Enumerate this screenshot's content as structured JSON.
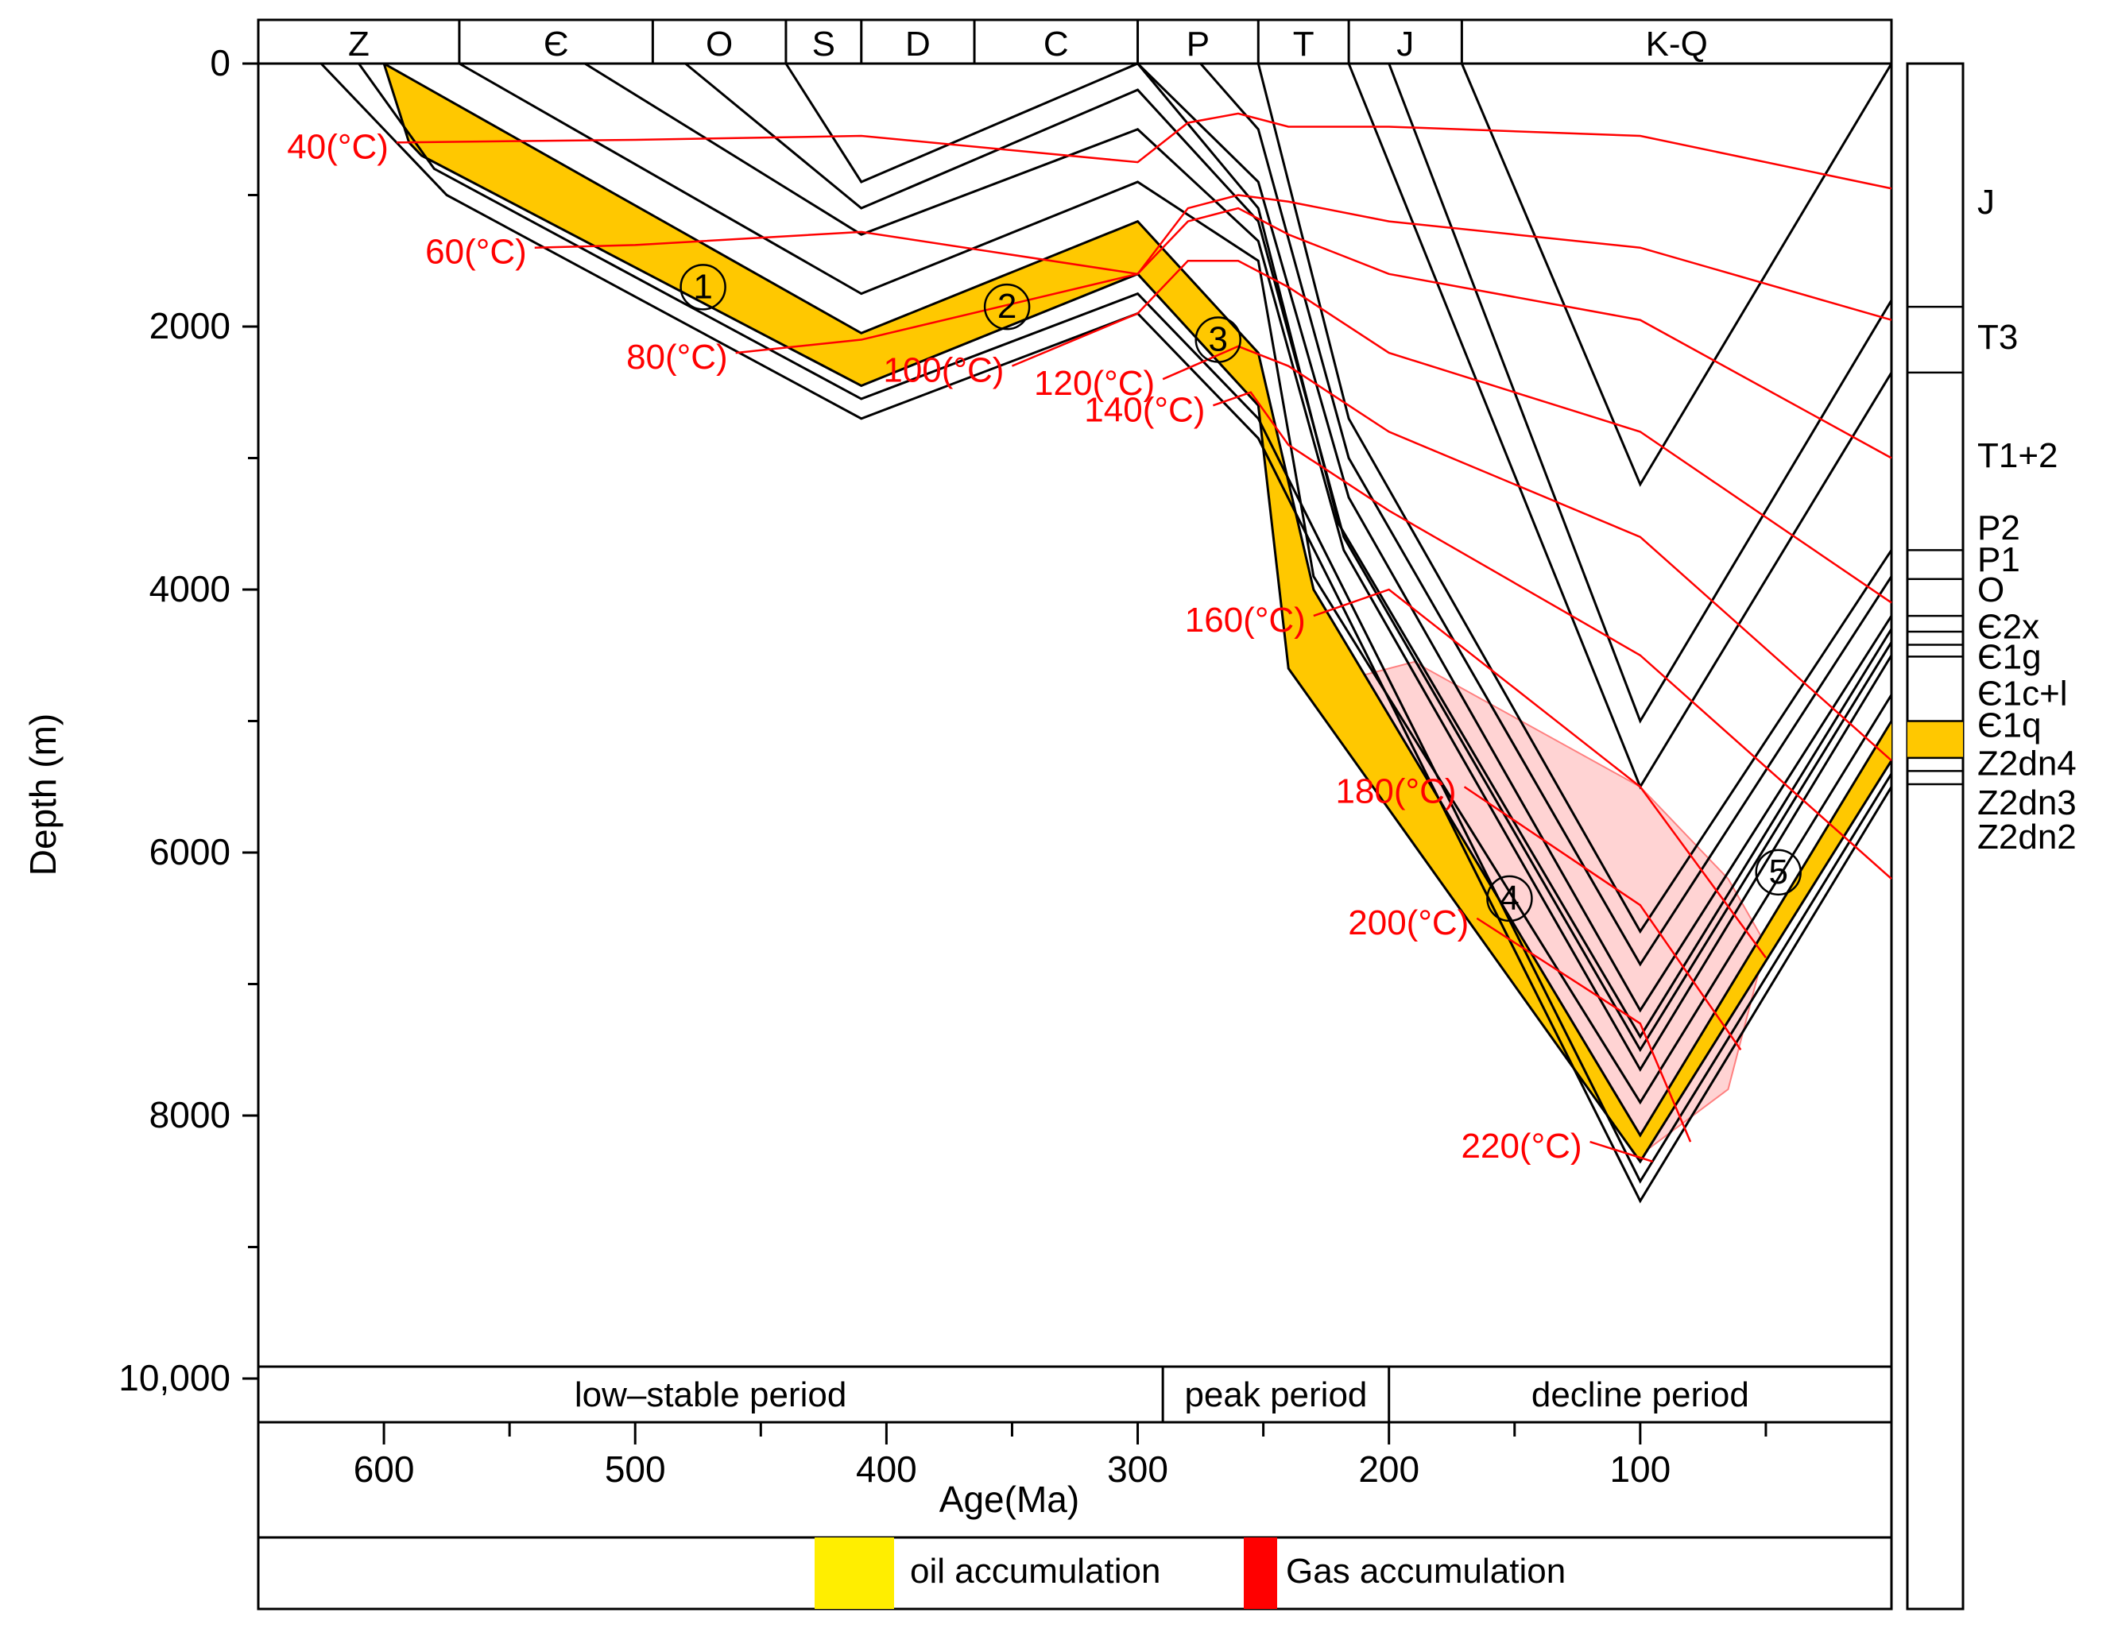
{
  "chart_data": {
    "type": "line",
    "title": "",
    "xlabel": "Age(Ma)",
    "ylabel": "Depth (m)",
    "xlim": [
      650,
      0
    ],
    "ylim": [
      0,
      11000
    ],
    "x_ticks": [
      600,
      500,
      400,
      300,
      200,
      100
    ],
    "x_tick_labels": [
      "600",
      "500",
      "400",
      "300",
      "200",
      "100"
    ],
    "y_ticks": [
      0,
      2000,
      4000,
      6000,
      8000,
      10000
    ],
    "y_tick_labels": [
      "0",
      "2000",
      "4000",
      "6000",
      "8000",
      "10,000"
    ],
    "periods": [
      {
        "label": "Z",
        "start": 650,
        "end": 570
      },
      {
        "label": "Є",
        "start": 570,
        "end": 493
      },
      {
        "label": "O",
        "start": 493,
        "end": 440
      },
      {
        "label": "S",
        "start": 440,
        "end": 410
      },
      {
        "label": "D",
        "start": 410,
        "end": 365
      },
      {
        "label": "C",
        "start": 365,
        "end": 300
      },
      {
        "label": "P",
        "start": 300,
        "end": 252
      },
      {
        "label": "T",
        "start": 252,
        "end": 216
      },
      {
        "label": "J",
        "start": 216,
        "end": 171
      },
      {
        "label": "K-Q",
        "start": 171,
        "end": 0
      }
    ],
    "tectonic_periods": [
      {
        "label": "low–stable period",
        "start": 650,
        "end": 290
      },
      {
        "label": "peak period",
        "start": 290,
        "end": 200
      },
      {
        "label": "decline period",
        "start": 200,
        "end": 0
      }
    ],
    "strata_column": [
      {
        "label": "J",
        "depth": 1050
      },
      {
        "label": "T3",
        "depth": 2080
      },
      {
        "label": "T1+2",
        "depth": 2980
      },
      {
        "label": "P2",
        "depth": 3530
      },
      {
        "label": "P1",
        "depth": 3770
      },
      {
        "label": "O",
        "depth": 4000
      },
      {
        "label": "Є2x",
        "depth": 4280
      },
      {
        "label": "Є1g",
        "depth": 4510
      },
      {
        "label": "Є1c+l",
        "depth": 4790
      },
      {
        "label": "Є1q",
        "depth": 5030
      },
      {
        "label": "Z2dn4",
        "depth": 5320
      },
      {
        "label": "Z2dn3",
        "depth": 5620
      },
      {
        "label": "Z2dn2",
        "depth": 5880
      }
    ],
    "strata_boundaries": [
      1850,
      2350,
      3700,
      3920,
      4200,
      4320,
      4420,
      4510,
      5000,
      5280,
      5380,
      5480
    ],
    "oil_layer_range": [
      5000,
      5280
    ],
    "burial_series": [
      {
        "name": "top-J",
        "x": [
          171,
          100,
          0
        ],
        "y": [
          0,
          3200,
          0
        ]
      },
      {
        "name": "top-T3",
        "x": [
          200,
          100,
          0
        ],
        "y": [
          0,
          5000,
          1800
        ]
      },
      {
        "name": "top-T12",
        "x": [
          216,
          100,
          0
        ],
        "y": [
          0,
          5500,
          2350
        ]
      },
      {
        "name": "top-P2",
        "x": [
          252,
          216,
          100,
          0
        ],
        "y": [
          0,
          2700,
          6600,
          3700
        ]
      },
      {
        "name": "top-P1",
        "x": [
          275,
          252,
          216,
          100,
          0
        ],
        "y": [
          0,
          500,
          3000,
          6850,
          3900
        ]
      },
      {
        "name": "top-O",
        "x": [
          300,
          252,
          216,
          100,
          0
        ],
        "y": [
          0,
          900,
          3300,
          7200,
          4200
        ]
      },
      {
        "name": "top-Є2x",
        "x": [
          440,
          410,
          300,
          252,
          220,
          100,
          0
        ],
        "y": [
          0,
          900,
          0,
          1100,
          3500,
          7400,
          4300
        ]
      },
      {
        "name": "top-Є1g",
        "x": [
          480,
          410,
          300,
          252,
          218,
          100,
          0
        ],
        "y": [
          0,
          1100,
          200,
          1200,
          3600,
          7500,
          4400
        ]
      },
      {
        "name": "top-Є1c+l",
        "x": [
          520,
          410,
          300,
          252,
          218,
          100,
          0
        ],
        "y": [
          0,
          1300,
          500,
          1350,
          3700,
          7650,
          4500
        ]
      },
      {
        "name": "top-Є1q",
        "x": [
          570,
          410,
          300,
          252,
          230,
          100,
          0
        ],
        "y": [
          0,
          1750,
          900,
          1500,
          3900,
          7900,
          4800
        ]
      },
      {
        "name": "top-Z2dn4",
        "x": [
          600,
          410,
          300,
          252,
          230,
          100,
          0
        ],
        "y": [
          0,
          2050,
          1200,
          2200,
          4000,
          8150,
          5000
        ]
      },
      {
        "name": "base-Z2dn4",
        "x": [
          600,
          590,
          585,
          410,
          300,
          252,
          240,
          100,
          0
        ],
        "y": [
          0,
          600,
          700,
          2450,
          1600,
          2600,
          4600,
          8350,
          5300
        ]
      },
      {
        "name": "top-Z2dn3",
        "x": [
          610,
          580,
          410,
          300,
          252,
          100,
          0
        ],
        "y": [
          0,
          800,
          2550,
          1750,
          2700,
          8500,
          5400
        ]
      },
      {
        "name": "top-Z2dn2",
        "x": [
          625,
          575,
          410,
          300,
          252,
          100,
          0
        ],
        "y": [
          0,
          1000,
          2700,
          1900,
          2850,
          8650,
          5500
        ]
      }
    ],
    "isotherms": [
      {
        "label": "40(°C)",
        "x": [
          595,
          500,
          410,
          300,
          280,
          260,
          240,
          200,
          100,
          0
        ],
        "y": [
          600,
          580,
          550,
          750,
          450,
          380,
          480,
          480,
          550,
          950
        ]
      },
      {
        "label": "60(°C)",
        "x": [
          540,
          500,
          410,
          300,
          280,
          260,
          240,
          200,
          100,
          0
        ],
        "y": [
          1400,
          1380,
          1280,
          1600,
          1100,
          1000,
          1050,
          1200,
          1400,
          1950
        ]
      },
      {
        "name": "80",
        "label": "80(°C)",
        "x": [
          460,
          410,
          300,
          280,
          260,
          240,
          200,
          100,
          0
        ],
        "y": [
          2200,
          2100,
          1600,
          1200,
          1100,
          1300,
          1600,
          1950,
          3000
        ]
      },
      {
        "label": "100(°C)",
        "x": [
          350,
          300,
          280,
          260,
          240,
          200,
          100,
          0
        ],
        "y": [
          2300,
          1900,
          1500,
          1500,
          1700,
          2200,
          2800,
          4100
        ]
      },
      {
        "label": "120(°C)",
        "x": [
          290,
          260,
          240,
          200,
          100,
          0
        ],
        "y": [
          2400,
          2150,
          2300,
          2800,
          3600,
          5300
        ]
      },
      {
        "label": "140(°C)",
        "x": [
          270,
          255,
          240,
          200,
          100,
          0
        ],
        "y": [
          2600,
          2500,
          2900,
          3400,
          4500,
          6200
        ]
      },
      {
        "label": "160(°C)",
        "x": [
          230,
          200,
          100,
          50
        ],
        "y": [
          4200,
          4000,
          5500,
          6800
        ]
      },
      {
        "label": "180(°C)",
        "x": [
          170,
          100,
          60
        ],
        "y": [
          5500,
          6400,
          7500
        ]
      },
      {
        "label": "200(°C)",
        "x": [
          165,
          100,
          80
        ],
        "y": [
          6500,
          7300,
          8200
        ]
      },
      {
        "label": "220(°C)",
        "x": [
          120,
          95
        ],
        "y": [
          8200,
          8350
        ]
      }
    ],
    "accumulation_markers": [
      {
        "label": "1",
        "x": 473,
        "y": 1700
      },
      {
        "label": "2",
        "x": 352,
        "y": 1850
      },
      {
        "label": "3",
        "x": 268,
        "y": 2100
      },
      {
        "label": "4",
        "x": 152,
        "y": 6350
      },
      {
        "label": "5",
        "x": 45,
        "y": 6150
      }
    ],
    "gas_zone": {
      "x": [
        230,
        210,
        190,
        100,
        65,
        50,
        65,
        100,
        230
      ],
      "y": [
        4200,
        4650,
        4550,
        5500,
        6200,
        6700,
        7800,
        8300,
        4200
      ]
    },
    "legend": [
      {
        "label": "oil accumulation",
        "color": "#ffee00"
      },
      {
        "label": "Gas accumulation",
        "color": "#ff0000"
      }
    ]
  },
  "colors": {
    "oil_layer": "#ffc800",
    "isotherm": "#ff0000",
    "gas_zone": "#ff8080",
    "oil_legend": "#ffee00",
    "gas_legend": "#ff0000",
    "burial_line": "#000000"
  }
}
